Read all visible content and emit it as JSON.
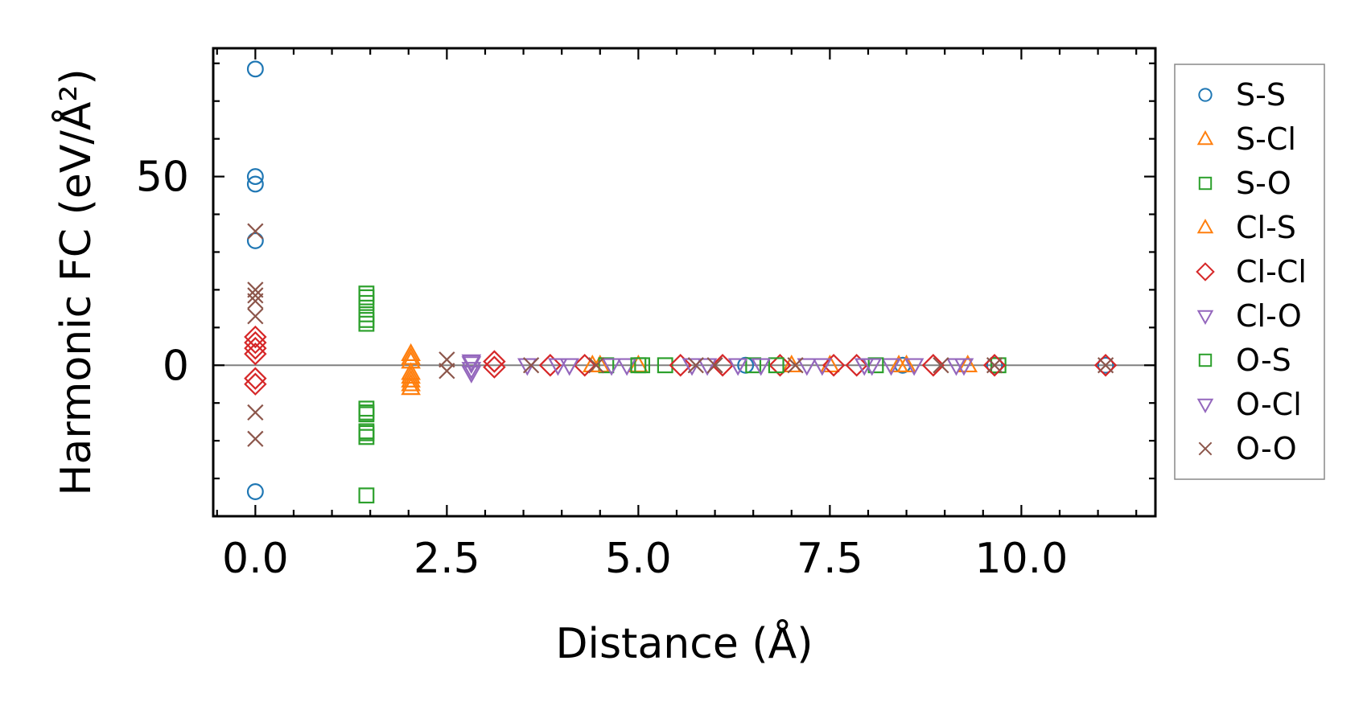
{
  "chart_data": {
    "type": "scatter",
    "xlabel": "Distance (Å)",
    "ylabel": "Harmonic FC (eV/Å²)",
    "xlim": [
      -0.55,
      11.75
    ],
    "ylim": [
      -40,
      84
    ],
    "x_ticks": [
      0.0,
      2.5,
      5.0,
      7.5,
      10.0
    ],
    "x_tick_labels": [
      "0.0",
      "2.5",
      "5.0",
      "7.5",
      "10.0"
    ],
    "y_ticks": [
      0,
      50
    ],
    "y_tick_labels": [
      "0",
      "50"
    ],
    "zero_line": 0,
    "grid": false,
    "legend_position": "right-outside",
    "series": [
      {
        "name": "S-S",
        "marker": "circle",
        "color": "#1f77b4",
        "points": [
          [
            0.0,
            78.5
          ],
          [
            0.0,
            50.0
          ],
          [
            0.0,
            48.0
          ],
          [
            0.0,
            33.0
          ],
          [
            0.0,
            -33.5
          ],
          [
            9.65,
            0.0
          ],
          [
            11.1,
            0.0
          ],
          [
            6.4,
            0.0
          ],
          [
            8.45,
            0.0
          ]
        ]
      },
      {
        "name": "S-Cl",
        "marker": "triangle-up",
        "color": "#ff7f0e",
        "points": [
          [
            2.03,
            3.0
          ],
          [
            2.03,
            1.0
          ],
          [
            2.03,
            -3.0
          ],
          [
            2.03,
            -4.0
          ],
          [
            2.03,
            -6.0
          ],
          [
            4.5,
            0.0
          ],
          [
            5.0,
            0.0
          ],
          [
            7.5,
            0.0
          ],
          [
            8.4,
            0.0
          ],
          [
            9.3,
            0.0
          ]
        ]
      },
      {
        "name": "S-O",
        "marker": "square",
        "color": "#2ca02c",
        "points": [
          [
            1.45,
            19.0
          ],
          [
            1.45,
            16.5
          ],
          [
            1.45,
            12.0
          ],
          [
            1.45,
            11.0
          ],
          [
            1.45,
            -11.5
          ],
          [
            1.45,
            -13.0
          ],
          [
            1.45,
            -17.5
          ],
          [
            1.45,
            -19.0
          ],
          [
            1.45,
            -34.5
          ],
          [
            4.58,
            0.0
          ],
          [
            5.05,
            0.0
          ],
          [
            5.35,
            0.0
          ],
          [
            6.5,
            0.0
          ],
          [
            9.7,
            0.0
          ]
        ]
      },
      {
        "name": "Cl-S",
        "marker": "triangle-up",
        "color": "#ff7f0e",
        "points": [
          [
            2.03,
            2.0
          ],
          [
            2.03,
            -2.0
          ],
          [
            2.03,
            -5.0
          ],
          [
            4.4,
            0.0
          ],
          [
            7.0,
            0.0
          ],
          [
            8.5,
            0.0
          ]
        ]
      },
      {
        "name": "Cl-Cl",
        "marker": "diamond",
        "color": "#d62728",
        "points": [
          [
            0.0,
            7.5
          ],
          [
            0.0,
            6.0
          ],
          [
            0.0,
            4.5
          ],
          [
            0.0,
            3.0
          ],
          [
            0.0,
            -3.5
          ],
          [
            0.0,
            -5.0
          ],
          [
            3.12,
            1.0
          ],
          [
            3.12,
            -0.5
          ],
          [
            3.85,
            0.0
          ],
          [
            4.3,
            0.0
          ],
          [
            5.55,
            0.0
          ],
          [
            6.1,
            0.0
          ],
          [
            6.85,
            0.0
          ],
          [
            7.55,
            0.0
          ],
          [
            7.85,
            0.0
          ],
          [
            8.85,
            0.0
          ],
          [
            9.65,
            0.0
          ],
          [
            11.1,
            0.0
          ]
        ]
      },
      {
        "name": "Cl-O",
        "marker": "triangle-down",
        "color": "#9467bd",
        "points": [
          [
            2.82,
            1.0
          ],
          [
            2.82,
            -2.0
          ],
          [
            3.55,
            0.0
          ],
          [
            4.1,
            0.0
          ],
          [
            4.85,
            0.0
          ],
          [
            5.7,
            0.0
          ],
          [
            6.3,
            0.0
          ],
          [
            7.2,
            0.0
          ],
          [
            7.95,
            0.0
          ],
          [
            8.3,
            0.0
          ],
          [
            9.25,
            0.0
          ]
        ]
      },
      {
        "name": "O-S",
        "marker": "square",
        "color": "#2ca02c",
        "points": [
          [
            1.45,
            18.0
          ],
          [
            1.45,
            13.5
          ],
          [
            1.45,
            -12.5
          ],
          [
            1.45,
            -18.0
          ],
          [
            5.0,
            0.0
          ],
          [
            6.8,
            0.0
          ],
          [
            8.1,
            0.0
          ]
        ]
      },
      {
        "name": "O-Cl",
        "marker": "triangle-down",
        "color": "#9467bd",
        "points": [
          [
            2.82,
            0.5
          ],
          [
            2.82,
            -1.0
          ],
          [
            3.95,
            0.0
          ],
          [
            4.65,
            0.0
          ],
          [
            5.9,
            0.0
          ],
          [
            6.6,
            0.0
          ],
          [
            7.4,
            0.0
          ],
          [
            8.05,
            0.0
          ],
          [
            8.6,
            0.0
          ],
          [
            9.15,
            0.0
          ]
        ]
      },
      {
        "name": "O-O",
        "marker": "x",
        "color": "#8c564b",
        "points": [
          [
            0.0,
            35.5
          ],
          [
            0.0,
            20.0
          ],
          [
            0.0,
            18.5
          ],
          [
            0.0,
            17.0
          ],
          [
            0.0,
            13.0
          ],
          [
            0.0,
            -12.5
          ],
          [
            0.0,
            -19.5
          ],
          [
            2.5,
            1.5
          ],
          [
            2.5,
            -1.5
          ],
          [
            3.6,
            0.0
          ],
          [
            4.45,
            0.0
          ],
          [
            5.75,
            0.0
          ],
          [
            6.0,
            0.0
          ],
          [
            7.05,
            0.0
          ],
          [
            8.95,
            0.0
          ],
          [
            9.65,
            0.0
          ],
          [
            11.1,
            0.0
          ]
        ]
      }
    ]
  }
}
